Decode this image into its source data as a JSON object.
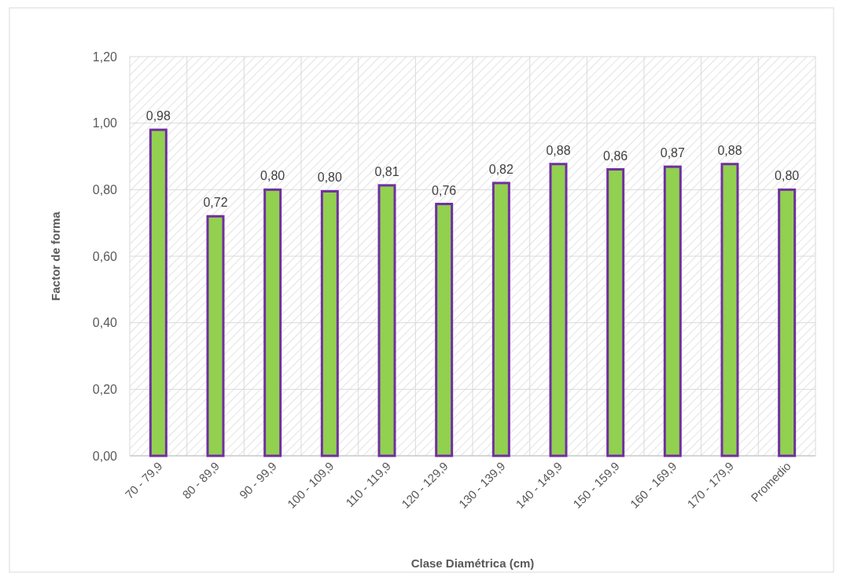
{
  "chart_data": {
    "type": "bar",
    "xlabel": "Clase Diamétrica (cm)",
    "ylabel": "Factor de forma",
    "categories": [
      "70 - 79,9",
      "80 - 89,9",
      "90 - 99,9",
      "100 - 109,9",
      "110 - 119,9",
      "120 - 129,9",
      "130 - 139,9",
      "140 - 149,9",
      "150 - 159,9",
      "160 - 169,9",
      "170 - 179,9",
      "Promedio"
    ],
    "values": [
      0.98,
      0.72,
      0.8,
      0.795,
      0.813,
      0.757,
      0.82,
      0.877,
      0.861,
      0.869,
      0.877,
      0.8
    ],
    "value_labels": [
      "0,98",
      "0,72",
      "0,80",
      "0,80",
      "0,81",
      "0,76",
      "0,82",
      "0,88",
      "0,86",
      "0,87",
      "0,88",
      "0,80"
    ],
    "color": "#92d050",
    "ylim": [
      0,
      1.2
    ],
    "yticks": [
      {
        "value": 0,
        "label": "0,00"
      },
      {
        "value": 0.2,
        "label": "0,20"
      },
      {
        "value": 0.4,
        "label": "0,40"
      },
      {
        "value": 0.6,
        "label": "0,60"
      },
      {
        "value": 0.8,
        "label": "0,80"
      },
      {
        "value": 1.0,
        "label": "1,00"
      },
      {
        "value": 1.2,
        "label": "1,20"
      }
    ],
    "grid": true
  }
}
